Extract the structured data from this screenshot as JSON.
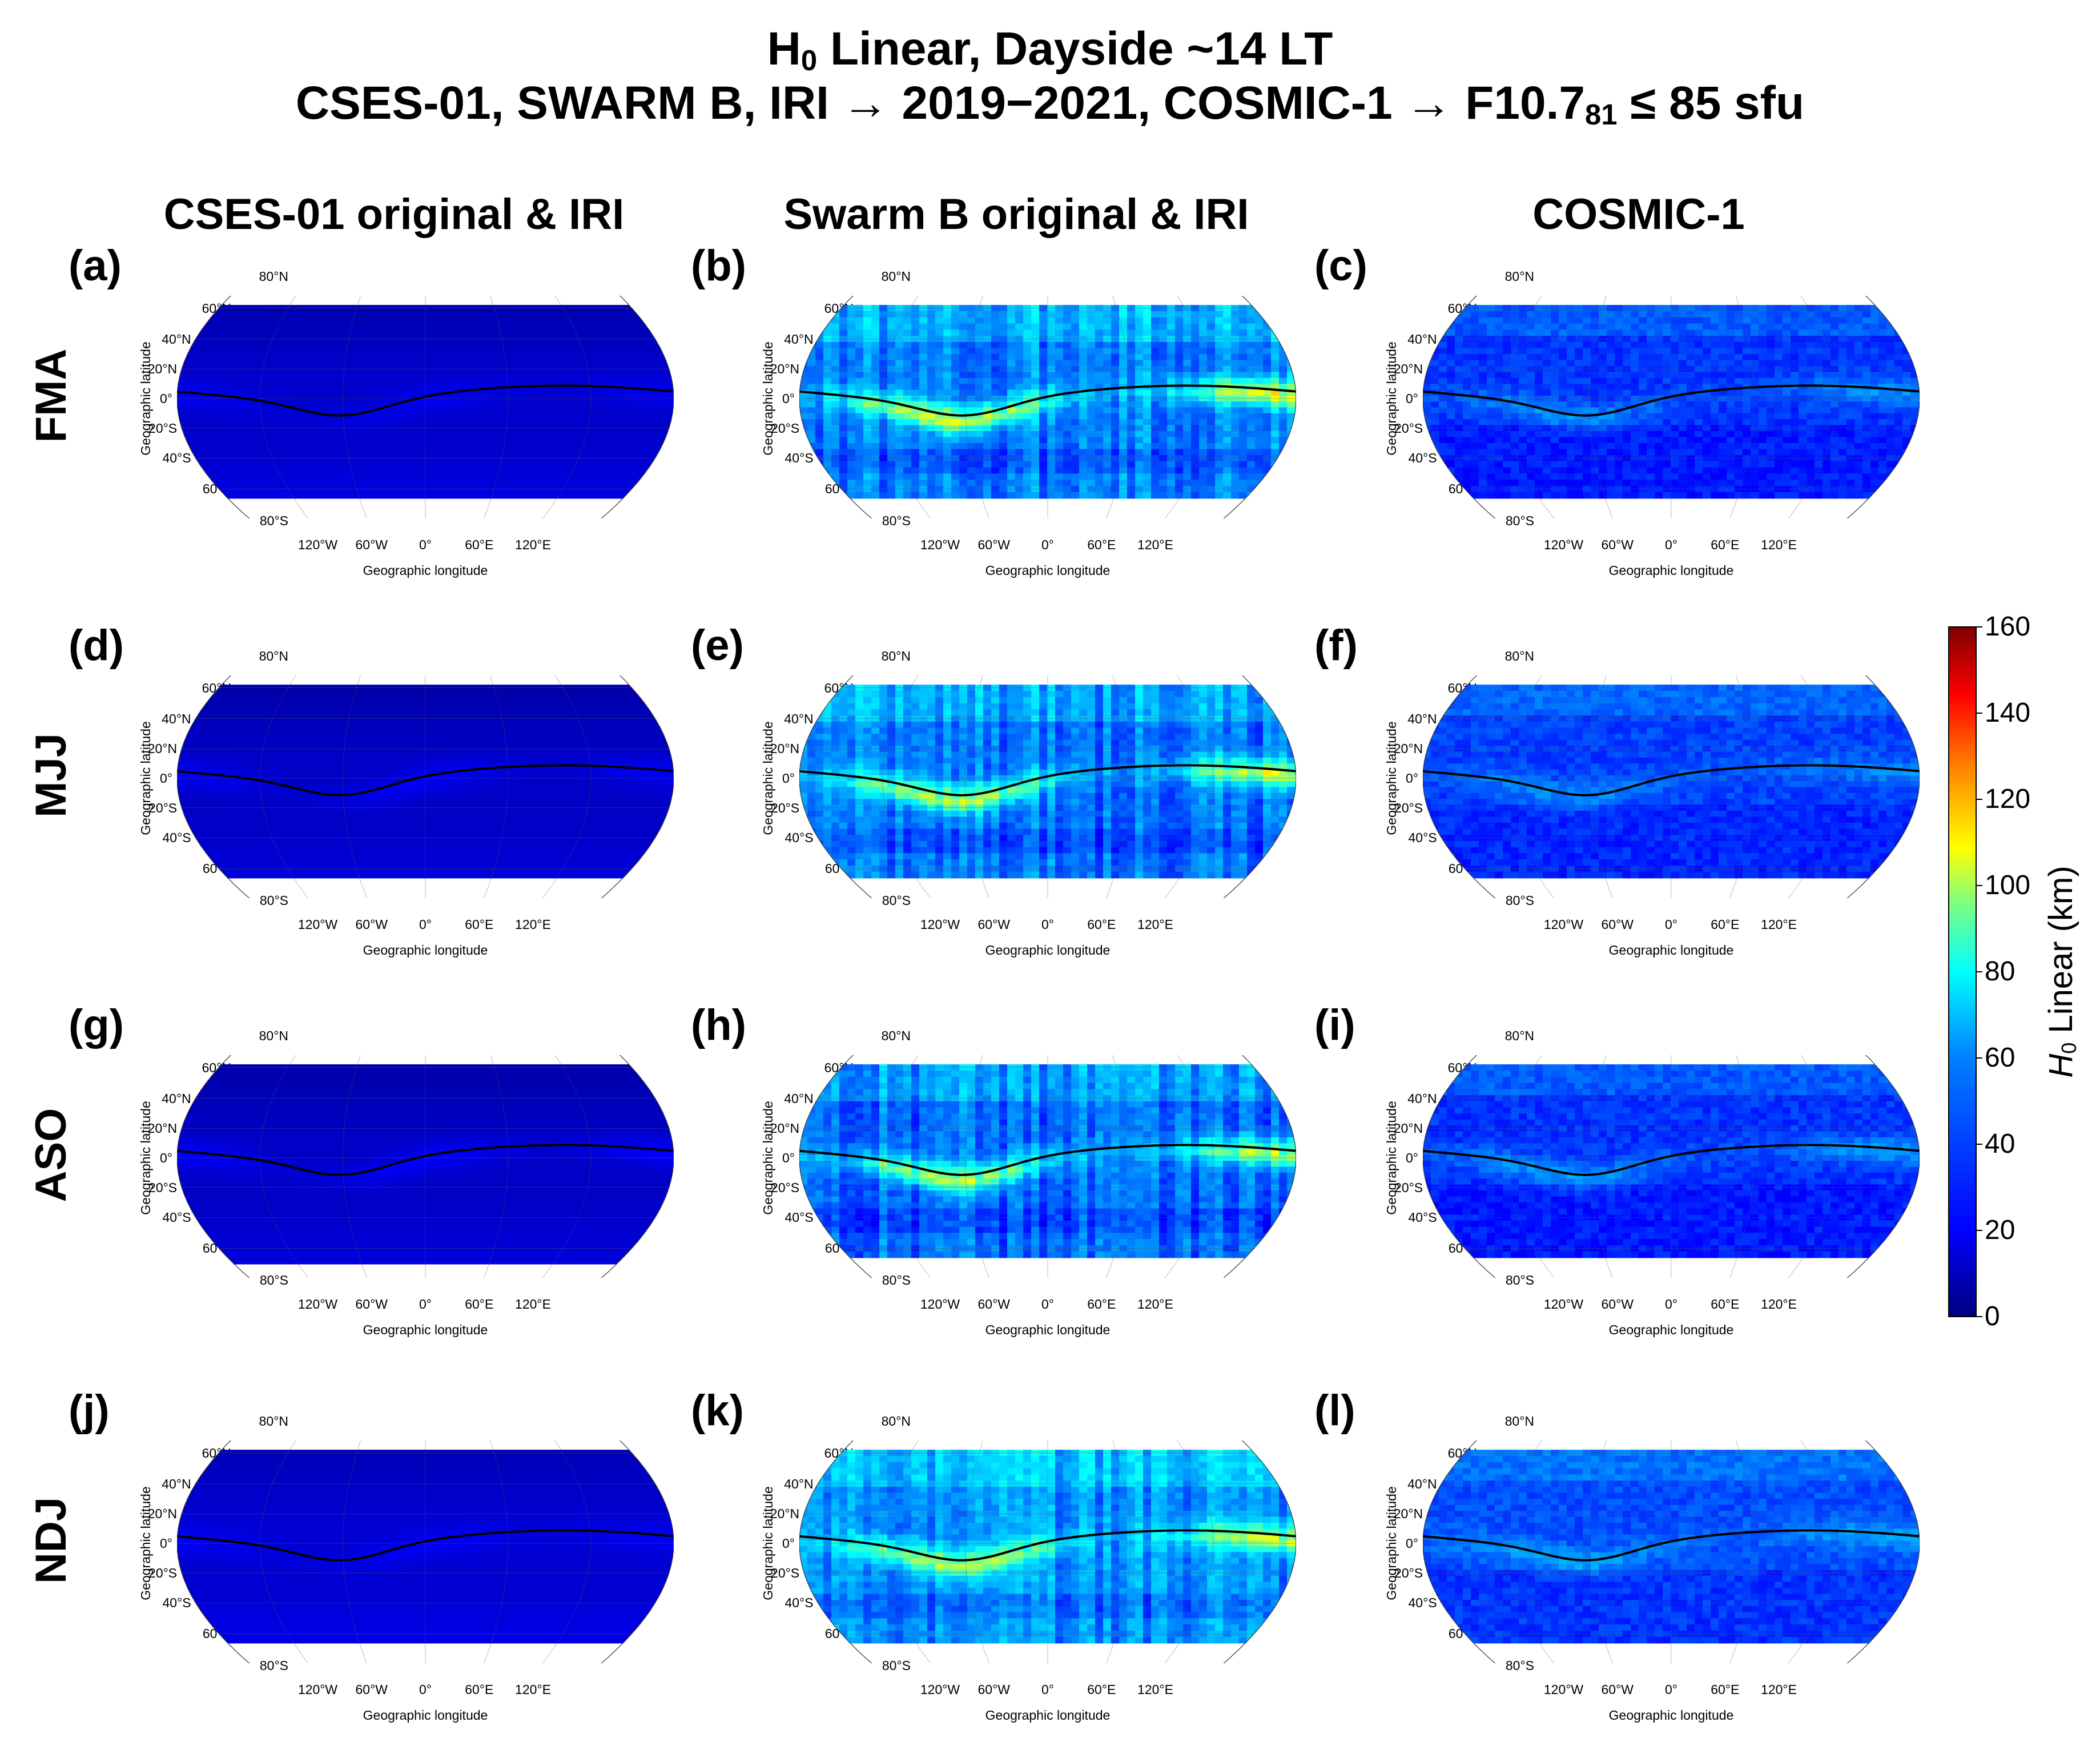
{
  "chart_data": {
    "type": "heatmap",
    "projection": "Robinson",
    "title": "H0 Linear, Dayside ~14 LT",
    "title_parts": {
      "h": "H",
      "sub0": "0",
      "rest": " Linear, Dayside ~14 LT"
    },
    "subtitle": "CSES-01, SWARM B, IRI → 2019−2021, COSMIC-1 → F10.781 ≤ 85 sfu",
    "subtitle_parts": {
      "pre": "CSES-01, SWARM B, IRI → 2019−2021,  COSMIC-1 → F10.7",
      "sub": "81",
      "post": " ≤ 85 sfu"
    },
    "columns": [
      "CSES-01 original & IRI",
      "Swarm B original & IRI",
      "COSMIC-1"
    ],
    "rows": [
      "FMA",
      "MJJ",
      "ASO",
      "NDJ"
    ],
    "panel_letters": [
      "(a)",
      "(b)",
      "(c)",
      "(d)",
      "(e)",
      "(f)",
      "(g)",
      "(h)",
      "(i)",
      "(j)",
      "(k)",
      "(l)"
    ],
    "lat_ticks": [
      "80°N",
      "60°N",
      "40°N",
      "20°N",
      "0°",
      "20°S",
      "40°S",
      "60°S",
      "80°S"
    ],
    "lon_ticks": [
      "120°W",
      "60°W",
      "0°",
      "60°E",
      "120°E"
    ],
    "xlabel": "Geographic longitude",
    "ylabel": "Geographic latitude",
    "colorbar": {
      "label": "H0 Linear (km)",
      "label_parts": {
        "h": "H",
        "sub": "0",
        "rest": " Linear (km)"
      },
      "min": 0,
      "max": 160,
      "ticks": [
        "0",
        "20",
        "40",
        "60",
        "80",
        "100",
        "120",
        "140",
        "160"
      ],
      "colormap": "jet",
      "colors": [
        "#00007f",
        "#0000ff",
        "#007fff",
        "#00ffff",
        "#7fff7f",
        "#ffff00",
        "#ff7f00",
        "#ff0000",
        "#7f0000"
      ]
    },
    "magnetic_equator_line": true,
    "approx_typical_values_km": {
      "CSES-01 original & IRI": {
        "background": 12,
        "equatorial_band": 25
      },
      "Swarm B original & IRI": {
        "background": 38,
        "equatorial_band": 95
      },
      "COSMIC-1": {
        "background": 28,
        "equatorial_band": 45
      }
    },
    "panels": [
      {
        "letter": "(a)",
        "col": 0,
        "row": 0,
        "base": 12,
        "band": 6,
        "pattern": "smooth",
        "south_cut": false
      },
      {
        "letter": "(b)",
        "col": 1,
        "row": 0,
        "base": 40,
        "band": 60,
        "pattern": "strips",
        "south_cut": false
      },
      {
        "letter": "(c)",
        "col": 2,
        "row": 0,
        "base": 28,
        "band": 14,
        "pattern": "noise",
        "south_cut": false
      },
      {
        "letter": "(d)",
        "col": 0,
        "row": 1,
        "base": 11,
        "band": 8,
        "pattern": "smooth",
        "south_cut": false
      },
      {
        "letter": "(e)",
        "col": 1,
        "row": 1,
        "base": 38,
        "band": 55,
        "pattern": "strips",
        "south_cut": false
      },
      {
        "letter": "(f)",
        "col": 2,
        "row": 1,
        "base": 30,
        "band": 12,
        "pattern": "noise",
        "south_cut": false
      },
      {
        "letter": "(g)",
        "col": 0,
        "row": 2,
        "base": 11,
        "band": 9,
        "pattern": "smooth",
        "south_cut": true
      },
      {
        "letter": "(h)",
        "col": 1,
        "row": 2,
        "base": 36,
        "band": 55,
        "pattern": "strips",
        "south_cut": false
      },
      {
        "letter": "(i)",
        "col": 2,
        "row": 2,
        "base": 28,
        "band": 16,
        "pattern": "noise",
        "south_cut": false
      },
      {
        "letter": "(j)",
        "col": 0,
        "row": 3,
        "base": 13,
        "band": 6,
        "pattern": "smooth",
        "south_cut": false
      },
      {
        "letter": "(k)",
        "col": 1,
        "row": 3,
        "base": 42,
        "band": 50,
        "pattern": "strips",
        "south_cut": false
      },
      {
        "letter": "(l)",
        "col": 2,
        "row": 3,
        "base": 32,
        "band": 14,
        "pattern": "noise",
        "south_cut": false
      }
    ]
  }
}
